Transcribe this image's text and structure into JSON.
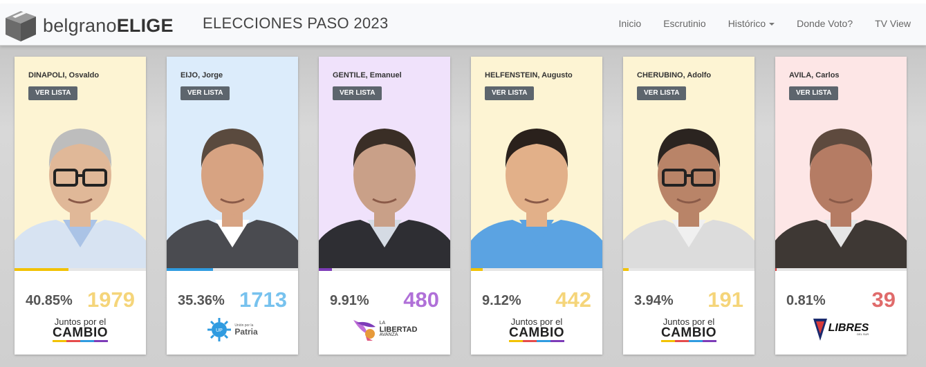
{
  "header": {
    "brand_prefix": "belgrano",
    "brand_suffix": "ELIGE",
    "title": "ELECCIONES PASO 2023",
    "nav": [
      "Inicio",
      "Escrutinio",
      "Histórico",
      "Donde Voto?",
      "TV View"
    ]
  },
  "button_label": "VER LISTA",
  "candidates": [
    {
      "name": "DINAPOLI, Osvaldo",
      "percent": "40.85%",
      "votes": "1979",
      "share": 0.4085,
      "bg": "#fdf4d3",
      "color": "#f5d57a",
      "bar": "#f2c200",
      "party": "juntos",
      "party_line1": "Juntos por el",
      "party_line2": "CAMBIO",
      "skin": "#e0b898",
      "hair": "#bdbdbd",
      "shirt": "#aac3e6",
      "jacket": "#d7e3f2",
      "glasses": true
    },
    {
      "name": "EIJO, Jorge",
      "percent": "35.36%",
      "votes": "1713",
      "share": 0.3536,
      "bg": "#dcecfb",
      "color": "#77c2ee",
      "bar": "#2f9be0",
      "party": "union",
      "party_line1": "Unión por la",
      "party_line2": "Patria",
      "skin": "#d7a382",
      "hair": "#5a4a3e",
      "shirt": "#ffffff",
      "jacket": "#4a4b50",
      "glasses": false
    },
    {
      "name": "GENTILE, Emanuel",
      "percent": "9.91%",
      "votes": "480",
      "share": 0.0991,
      "bg": "#f0e2fb",
      "color": "#b070d8",
      "bar": "#7d3cb8",
      "party": "libertad",
      "party_line1": "LA",
      "party_line2": "LIBERTAD",
      "party_line3": "AVANZA",
      "skin": "#c9a088",
      "hair": "#3a2e26",
      "shirt": "#d5dbe4",
      "jacket": "#2e2e33",
      "glasses": false
    },
    {
      "name": "HELFENSTEIN, Augusto",
      "percent": "9.12%",
      "votes": "442",
      "share": 0.0912,
      "bg": "#fdf4d3",
      "color": "#f5d57a",
      "bar": "#f2c200",
      "party": "juntos",
      "party_line1": "Juntos por el",
      "party_line2": "CAMBIO",
      "skin": "#e2b089",
      "hair": "#2a211c",
      "shirt": "#5ba3e2",
      "jacket": "#5ba3e2",
      "glasses": false
    },
    {
      "name": "CHERUBINO, Adolfo",
      "percent": "3.94%",
      "votes": "191",
      "share": 0.0394,
      "bg": "#fdf4d3",
      "color": "#f5d57a",
      "bar": "#f2c200",
      "party": "juntos",
      "party_line1": "Juntos por el",
      "party_line2": "CAMBIO",
      "skin": "#b98468",
      "hair": "#2b2420",
      "shirt": "#f0f0f0",
      "jacket": "#dcdcdc",
      "glasses": true
    },
    {
      "name": "AVILA, Carlos",
      "percent": "0.81%",
      "votes": "39",
      "share": 0.0081,
      "bg": "#fde6e6",
      "color": "#e06b6b",
      "bar": "#d93b3b",
      "party": "libres",
      "party_line1": "LIBRES",
      "party_line2": "DEL SUR",
      "skin": "#b57c64",
      "hair": "#5e4a3e",
      "shirt": "#e6e6e6",
      "jacket": "#3e3834",
      "glasses": false
    }
  ]
}
